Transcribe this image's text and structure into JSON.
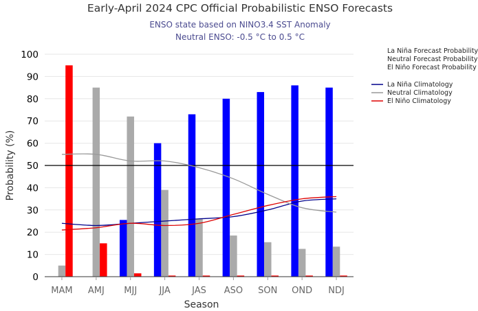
{
  "chart_data": {
    "type": "bar",
    "title": "Early-April 2024 CPC Official Probabilistic ENSO Forecasts",
    "subtitle_lines": [
      "ENSO state based on NINO3.4 SST Anomaly",
      "Neutral ENSO: -0.5 °C to 0.5 °C"
    ],
    "xlabel": "Season",
    "ylabel": "Probability (%)",
    "ylim": [
      0,
      100
    ],
    "yticks": [
      "0",
      "10",
      "20",
      "30",
      "40",
      "50",
      "60",
      "70",
      "80",
      "90",
      "100"
    ],
    "reference_line": 50,
    "grid": "horizontal",
    "legend_position": "top-right",
    "categories": [
      "MAM",
      "AMJ",
      "MJJ",
      "JJA",
      "JAS",
      "ASO",
      "SON",
      "OND",
      "NDJ"
    ],
    "series": [
      {
        "name": "La Niña Forecast Probability",
        "color": "#0000ff",
        "values": [
          0,
          0,
          25.5,
          60,
          73,
          80,
          83,
          86,
          85
        ]
      },
      {
        "name": "Neutral Forecast Probability",
        "color": "#aaaaaa",
        "values": [
          5,
          85,
          72,
          39,
          26,
          18.5,
          15.5,
          12.5,
          13.5
        ]
      },
      {
        "name": "El Niño Forecast Probability",
        "color": "#ff0000",
        "values": [
          95,
          15,
          1.5,
          0.5,
          0.5,
          0.5,
          0.5,
          0.5,
          0.5
        ]
      }
    ],
    "climatology": [
      {
        "name": "La Niña Climatology",
        "color": "#00008b",
        "values": [
          24,
          23,
          24,
          25,
          26,
          27,
          30,
          34,
          35
        ]
      },
      {
        "name": "Neutral Climatology",
        "color": "#999999",
        "values": [
          55,
          55,
          52,
          52,
          49,
          44,
          37,
          31,
          29
        ]
      },
      {
        "name": "El Niño Climatology",
        "color": "#dd0000",
        "values": [
          21,
          22,
          24,
          23,
          24,
          28,
          32,
          35,
          36
        ]
      }
    ]
  }
}
